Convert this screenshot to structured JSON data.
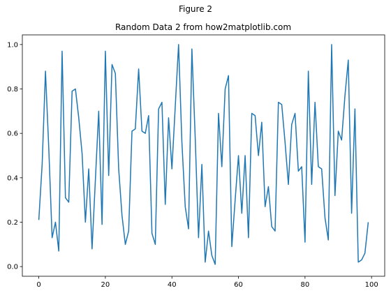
{
  "figure": {
    "suptitle": "Figure 2"
  },
  "chart_data": {
    "type": "line",
    "title": "Random Data 2 from how2matplotlib.com",
    "xlabel": "",
    "ylabel": "",
    "xlim": [
      -4.95,
      103.95
    ],
    "ylim": [
      -0.0435,
      1.0435
    ],
    "xticks": [
      0,
      20,
      40,
      60,
      80,
      100
    ],
    "xtick_labels": [
      "0",
      "20",
      "40",
      "60",
      "80",
      "100"
    ],
    "yticks": [
      0.0,
      0.2,
      0.4,
      0.6,
      0.8,
      1.0
    ],
    "ytick_labels": [
      "0.0",
      "0.2",
      "0.4",
      "0.6",
      "0.8",
      "1.0"
    ],
    "grid": false,
    "line_color": "#1f77b4",
    "series": [
      {
        "x": [
          0,
          1,
          2,
          3,
          4,
          5,
          6,
          7,
          8,
          9,
          10,
          11,
          12,
          13,
          14,
          15,
          16,
          17,
          18,
          19,
          20,
          21,
          22,
          23,
          24,
          25,
          26,
          27,
          28,
          29,
          30,
          31,
          32,
          33,
          34,
          35,
          36,
          37,
          38,
          39,
          40,
          41,
          42,
          43,
          44,
          45,
          46,
          47,
          48,
          49,
          50,
          51,
          52,
          53,
          54,
          55,
          56,
          57,
          58,
          59,
          60,
          61,
          62,
          63,
          64,
          65,
          66,
          67,
          68,
          69,
          70,
          71,
          72,
          73,
          74,
          75,
          76,
          77,
          78,
          79,
          80,
          81,
          82,
          83,
          84,
          85,
          86,
          87,
          88,
          89,
          90,
          91,
          92,
          93,
          94,
          95,
          96,
          97,
          98,
          99
        ],
        "values": [
          0.21,
          0.46,
          0.88,
          0.53,
          0.13,
          0.2,
          0.07,
          0.97,
          0.31,
          0.29,
          0.79,
          0.8,
          0.67,
          0.51,
          0.2,
          0.44,
          0.08,
          0.39,
          0.7,
          0.19,
          0.97,
          0.41,
          0.91,
          0.87,
          0.44,
          0.23,
          0.1,
          0.16,
          0.61,
          0.62,
          0.89,
          0.61,
          0.6,
          0.68,
          0.15,
          0.1,
          0.71,
          0.74,
          0.28,
          0.67,
          0.44,
          0.72,
          1.0,
          0.56,
          0.27,
          0.17,
          0.98,
          0.58,
          0.13,
          0.46,
          0.02,
          0.16,
          0.05,
          0.01,
          0.69,
          0.45,
          0.8,
          0.86,
          0.09,
          0.3,
          0.5,
          0.24,
          0.5,
          0.13,
          0.69,
          0.68,
          0.5,
          0.65,
          0.27,
          0.36,
          0.18,
          0.16,
          0.74,
          0.73,
          0.56,
          0.37,
          0.64,
          0.69,
          0.43,
          0.45,
          0.11,
          0.88,
          0.37,
          0.74,
          0.45,
          0.44,
          0.22,
          0.12,
          1.0,
          0.32,
          0.61,
          0.57,
          0.77,
          0.93,
          0.24,
          0.71,
          0.02,
          0.03,
          0.06,
          0.2
        ]
      }
    ]
  }
}
